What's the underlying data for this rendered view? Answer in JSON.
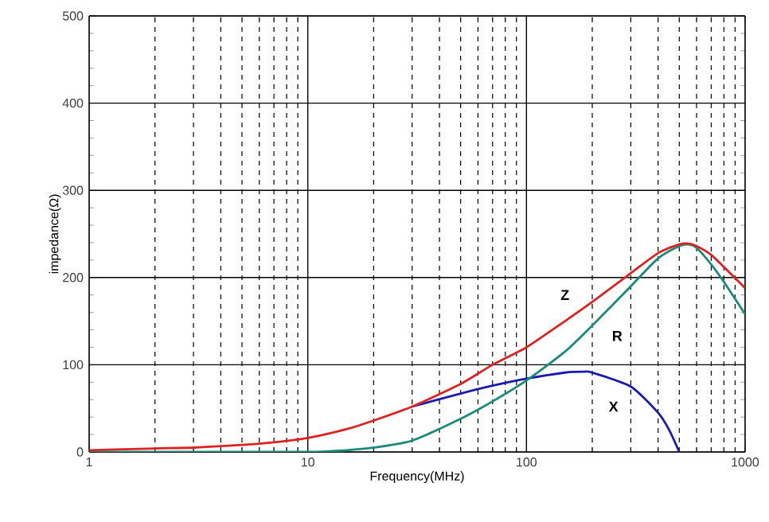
{
  "chart_data": {
    "type": "line",
    "xlabel": "Frequency(MHz)",
    "ylabel": "impedance(Ω)",
    "log": "x",
    "xlim": [
      1,
      1000
    ],
    "xticks": [
      1,
      10,
      100,
      1000
    ],
    "ylim": [
      0,
      500
    ],
    "yticks": [
      0,
      100,
      200,
      300,
      400,
      500
    ],
    "grid": true,
    "legend": false,
    "marker": "none",
    "line_style": "solid",
    "series": [
      {
        "name": "Z",
        "color": "#dd2222",
        "x": [
          1,
          2,
          3,
          5,
          7,
          10,
          15,
          20,
          30,
          50,
          70,
          100,
          150,
          200,
          300,
          400,
          500,
          550,
          600,
          700,
          800,
          1000
        ],
        "values": [
          2,
          4,
          5,
          8,
          11,
          16,
          26,
          36,
          52,
          78,
          100,
          120,
          150,
          172,
          205,
          228,
          238,
          239,
          236,
          226,
          212,
          188
        ]
      },
      {
        "name": "R",
        "color": "#1a8a7a",
        "x": [
          1,
          5,
          10,
          15,
          20,
          30,
          50,
          70,
          100,
          150,
          200,
          300,
          400,
          500,
          550,
          600,
          700,
          800,
          1000
        ],
        "values": [
          0,
          0,
          0,
          2,
          5,
          13,
          38,
          58,
          82,
          115,
          145,
          190,
          222,
          236,
          238,
          234,
          215,
          195,
          158
        ]
      },
      {
        "name": "X",
        "color": "#1a1ab0",
        "x": [
          30,
          50,
          70,
          100,
          150,
          180,
          200,
          300,
          400,
          450,
          500
        ],
        "values": [
          52,
          67,
          76,
          84,
          91,
          92,
          91,
          75,
          45,
          25,
          0
        ]
      }
    ]
  }
}
